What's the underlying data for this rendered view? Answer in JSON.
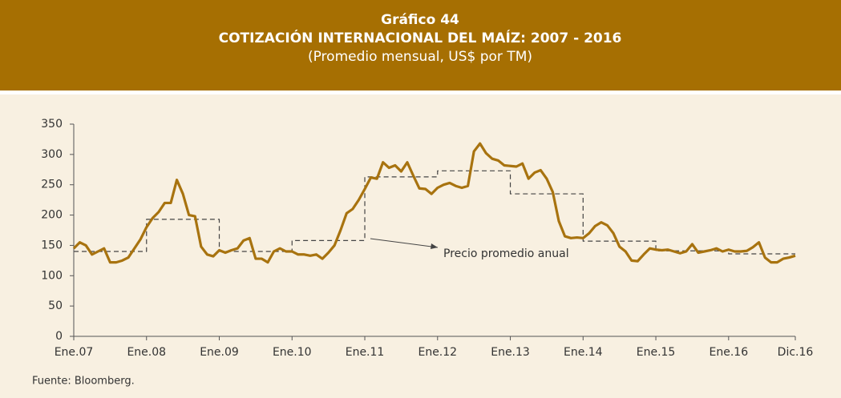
{
  "chart_data": {
    "type": "line",
    "chart_number": "Gráfico 44",
    "title": "COTIZACIÓN INTERNACIONAL DEL MAÍZ: 2007 - 2016",
    "subtitle": "(Promedio mensual, US$ por TM)",
    "source": "Fuente: Bloomberg.",
    "categories": [
      "Ene.07",
      null,
      null,
      null,
      null,
      null,
      null,
      null,
      null,
      null,
      null,
      null,
      "Ene.08",
      null,
      null,
      null,
      null,
      null,
      null,
      null,
      null,
      null,
      null,
      null,
      "Ene.09",
      null,
      null,
      null,
      null,
      null,
      null,
      null,
      null,
      null,
      null,
      null,
      "Ene.10",
      null,
      null,
      null,
      null,
      null,
      null,
      null,
      null,
      null,
      null,
      null,
      "Ene.11",
      null,
      null,
      null,
      null,
      null,
      null,
      null,
      null,
      null,
      null,
      null,
      "Ene.12",
      null,
      null,
      null,
      null,
      null,
      null,
      null,
      null,
      null,
      null,
      null,
      "Ene.13",
      null,
      null,
      null,
      null,
      null,
      null,
      null,
      null,
      null,
      null,
      null,
      "Ene.14",
      null,
      null,
      null,
      null,
      null,
      null,
      null,
      null,
      null,
      null,
      null,
      "Ene.15",
      null,
      null,
      null,
      null,
      null,
      null,
      null,
      null,
      null,
      null,
      null,
      "Ene.16",
      null,
      null,
      null,
      null,
      null,
      null,
      null,
      null,
      null,
      null,
      "Dic.16"
    ],
    "series": [
      {
        "color": "#a8730f",
        "values": [
          145,
          155,
          150,
          135,
          140,
          145,
          122,
          122,
          125,
          130,
          145,
          160,
          180,
          195,
          205,
          220,
          220,
          258,
          235,
          200,
          198,
          148,
          135,
          132,
          142,
          138,
          142,
          145,
          158,
          162,
          128,
          128,
          122,
          140,
          145,
          140,
          140,
          135,
          135,
          133,
          135,
          128,
          138,
          150,
          175,
          203,
          210,
          225,
          243,
          262,
          260,
          287,
          278,
          282,
          272,
          287,
          265,
          244,
          243,
          235,
          245,
          250,
          253,
          248,
          245,
          248,
          305,
          318,
          302,
          293,
          290,
          282,
          281,
          280,
          285,
          260,
          270,
          274,
          260,
          238,
          190,
          165,
          162,
          163,
          162,
          170,
          182,
          188,
          183,
          170,
          148,
          140,
          125,
          124,
          135,
          145,
          143,
          142,
          143,
          140,
          137,
          140,
          152,
          138,
          140,
          142,
          145,
          140,
          143,
          140,
          140,
          141,
          147,
          155,
          130,
          122,
          122,
          128,
          130,
          133
        ]
      },
      {
        "name": "Precio promedio anual",
        "color": "#444444",
        "dashed": true,
        "values": [
          140,
          140,
          140,
          140,
          140,
          140,
          140,
          140,
          140,
          140,
          140,
          140,
          193,
          193,
          193,
          193,
          193,
          193,
          193,
          193,
          193,
          193,
          193,
          193,
          140,
          140,
          140,
          140,
          140,
          140,
          140,
          140,
          140,
          140,
          140,
          140,
          158,
          158,
          158,
          158,
          158,
          158,
          158,
          158,
          158,
          158,
          158,
          158,
          263,
          263,
          263,
          263,
          263,
          263,
          263,
          263,
          263,
          263,
          263,
          263,
          273,
          273,
          273,
          273,
          273,
          273,
          273,
          273,
          273,
          273,
          273,
          273,
          235,
          235,
          235,
          235,
          235,
          235,
          235,
          235,
          235,
          235,
          235,
          235,
          157,
          157,
          157,
          157,
          157,
          157,
          157,
          157,
          157,
          157,
          157,
          157,
          141,
          141,
          141,
          141,
          141,
          141,
          141,
          141,
          141,
          141,
          141,
          141,
          136,
          136,
          136,
          136,
          136,
          136,
          136,
          136,
          136,
          136,
          136,
          136
        ]
      }
    ],
    "ylim": [
      0,
      350
    ],
    "yticks": [
      0,
      50,
      100,
      150,
      200,
      250,
      300,
      350
    ],
    "grid": false
  }
}
